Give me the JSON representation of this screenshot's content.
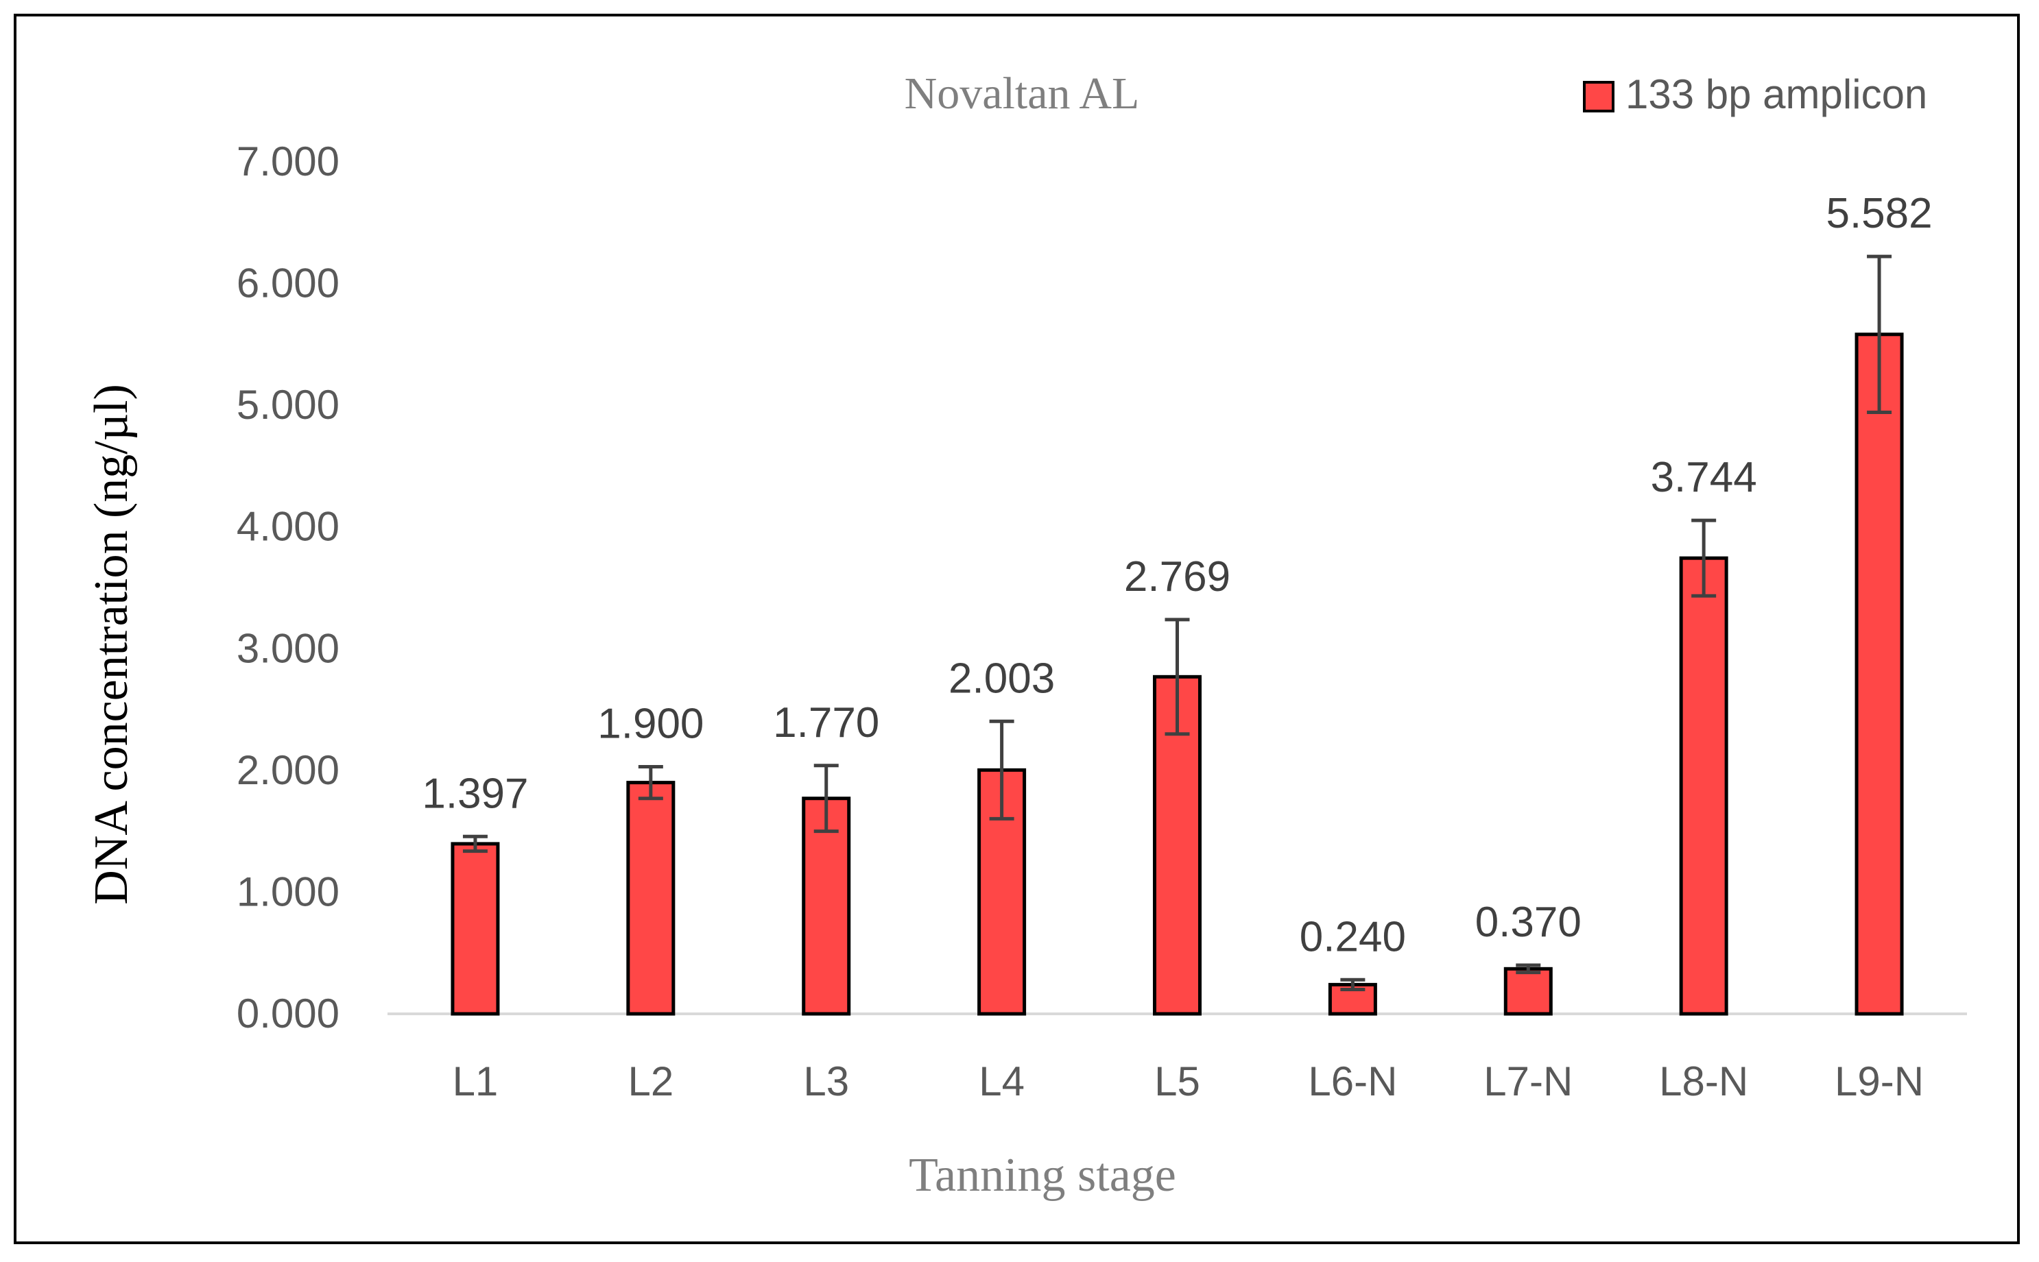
{
  "chart_data": {
    "type": "bar",
    "title": "Novaltan AL",
    "xlabel": "Tanning stage",
    "ylabel": "DNA concentration (ng/µl)",
    "categories": [
      "L1",
      "L2",
      "L3",
      "L4",
      "L5",
      "L6-N",
      "L7-N",
      "L8-N",
      "L9-N"
    ],
    "series": [
      {
        "name": "133 bp amplicon",
        "values": [
          1.397,
          1.9,
          1.77,
          2.003,
          2.769,
          0.24,
          0.37,
          3.744,
          5.582
        ],
        "value_labels": [
          "1.397",
          "1.900",
          "1.770",
          "2.003",
          "2.769",
          "0.240",
          "0.370",
          "3.744",
          "5.582"
        ],
        "error": [
          0.06,
          0.13,
          0.27,
          0.4,
          0.47,
          0.04,
          0.03,
          0.31,
          0.64
        ],
        "color": "#ff4747"
      }
    ],
    "ylim": [
      0,
      7
    ],
    "yticks": [
      0,
      1,
      2,
      3,
      4,
      5,
      6,
      7
    ],
    "ytick_labels": [
      "0.000",
      "1.000",
      "2.000",
      "3.000",
      "4.000",
      "5.000",
      "6.000",
      "7.000"
    ],
    "grid": false,
    "legend": "top-right",
    "colors": {
      "bar_fill": "#ff4747",
      "bar_stroke": "#000000",
      "error_bar": "#404040",
      "text": "#595959",
      "axis_line": "#d9d9d9"
    }
  }
}
